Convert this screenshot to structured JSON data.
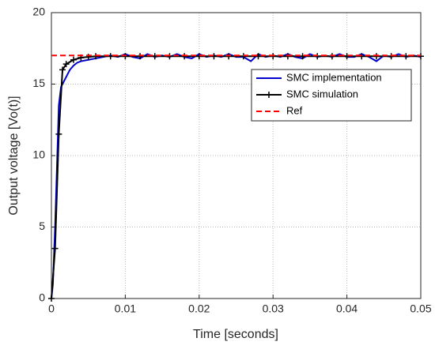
{
  "chart_data": {
    "type": "line",
    "xlabel": "Time [seconds]",
    "ylabel": "Output voltage [Vo(t)]",
    "xlim": [
      0,
      0.05
    ],
    "xticks": [
      0,
      0.01,
      0.02,
      0.03,
      0.04,
      0.05
    ],
    "ylim": [
      0,
      20
    ],
    "yticks": [
      0,
      5,
      10,
      15,
      20
    ],
    "grid": true,
    "legend": "upper right",
    "series": [
      {
        "name": "SMC implementation",
        "color": "#0000cc",
        "linestyle": "solid",
        "marker": "none",
        "x": [
          0,
          0.0002,
          0.0005,
          0.0008,
          0.001,
          0.0013,
          0.0015,
          0.002,
          0.0025,
          0.003,
          0.0035,
          0.004,
          0.005,
          0.006,
          0.007,
          0.008,
          0.009,
          0.01,
          0.011,
          0.012,
          0.013,
          0.014,
          0.015,
          0.016,
          0.017,
          0.018,
          0.019,
          0.02,
          0.021,
          0.022,
          0.023,
          0.024,
          0.025,
          0.026,
          0.027,
          0.028,
          0.029,
          0.03,
          0.031,
          0.032,
          0.033,
          0.034,
          0.035,
          0.036,
          0.037,
          0.038,
          0.039,
          0.04,
          0.041,
          0.042,
          0.043,
          0.044,
          0.045,
          0.046,
          0.047,
          0.048,
          0.049,
          0.05
        ],
        "values": [
          0,
          1,
          5,
          10,
          13.5,
          14.8,
          15,
          15.5,
          16,
          16.3,
          16.5,
          16.6,
          16.7,
          16.8,
          16.9,
          17,
          16.9,
          17.1,
          16.9,
          16.8,
          17.1,
          16.9,
          17.0,
          16.9,
          17.1,
          16.9,
          16.8,
          17.1,
          16.9,
          17.0,
          16.9,
          17.1,
          16.9,
          16.9,
          16.6,
          17.1,
          16.9,
          17.0,
          16.9,
          17.1,
          16.9,
          16.8,
          17.1,
          16.9,
          17.0,
          16.9,
          17.1,
          16.9,
          16.9,
          17.1,
          16.9,
          16.6,
          17.0,
          16.9,
          17.1,
          16.9,
          17.0,
          16.9
        ]
      },
      {
        "name": "SMC simulation",
        "color": "#000000",
        "linestyle": "solid",
        "marker": "plus",
        "x": [
          0,
          0.0005,
          0.001,
          0.0015,
          0.002,
          0.003,
          0.004,
          0.005,
          0.006,
          0.008,
          0.01,
          0.012,
          0.014,
          0.016,
          0.018,
          0.02,
          0.022,
          0.024,
          0.026,
          0.028,
          0.03,
          0.032,
          0.034,
          0.036,
          0.038,
          0.04,
          0.042,
          0.044,
          0.046,
          0.048,
          0.05
        ],
        "values": [
          0,
          3.5,
          11.5,
          16.0,
          16.4,
          16.7,
          16.85,
          16.9,
          16.95,
          16.95,
          16.95,
          16.95,
          16.95,
          16.95,
          16.95,
          16.95,
          16.95,
          16.95,
          16.95,
          16.95,
          16.95,
          16.95,
          16.95,
          16.95,
          16.95,
          16.95,
          16.95,
          16.95,
          16.95,
          16.95,
          16.95
        ]
      },
      {
        "name": "Ref",
        "color": "#ff0000",
        "linestyle": "dashed",
        "marker": "none",
        "x": [
          0,
          0.05
        ],
        "values": [
          17,
          17
        ]
      }
    ]
  }
}
